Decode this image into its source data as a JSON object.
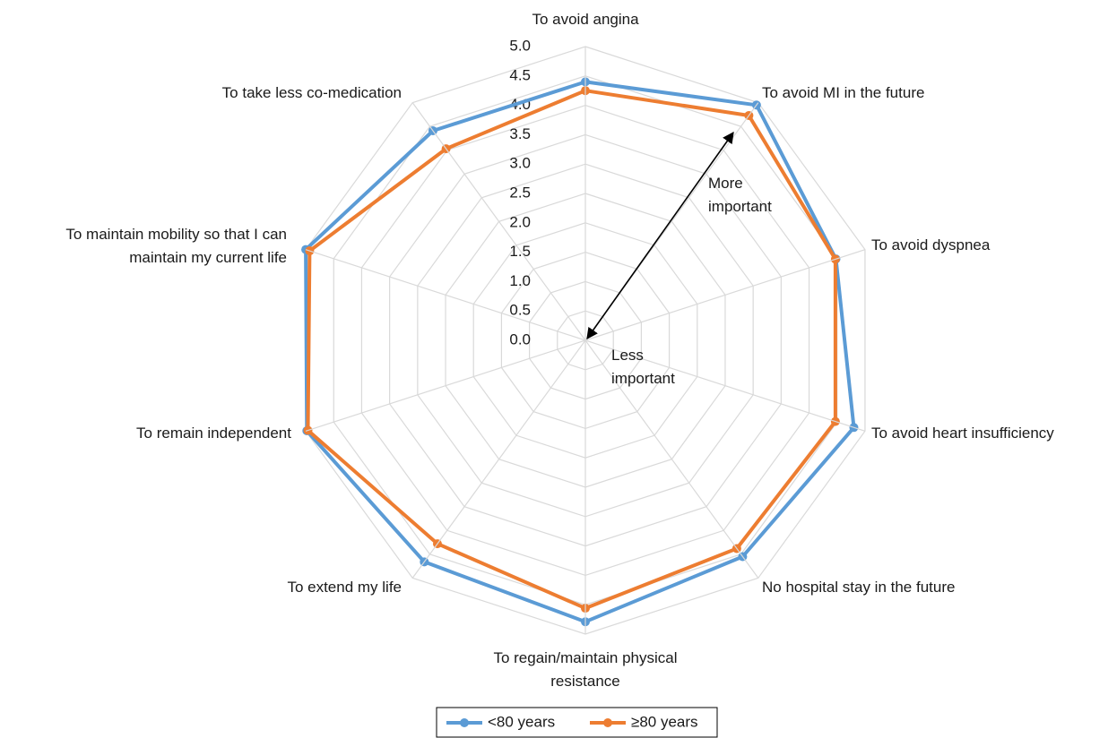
{
  "chart_data": {
    "type": "radar",
    "categories": [
      "To avoid angina",
      "To avoid MI in the future",
      "To avoid dyspnea",
      "To avoid heart insufficiency",
      "No hospital stay in the future",
      "To regain/maintain physical resistance",
      "To extend my life",
      "To remain independent",
      "To maintain mobility so that I can maintain my current life",
      "To take less co-medication"
    ],
    "series": [
      {
        "name": "<80 years",
        "color": "#5b9bd5",
        "values": [
          4.4,
          4.95,
          4.48,
          4.8,
          4.55,
          4.79,
          4.66,
          4.98,
          5.0,
          4.41
        ]
      },
      {
        "name": "≥80 years",
        "color": "#ed7d31",
        "values": [
          4.25,
          4.73,
          4.47,
          4.47,
          4.38,
          4.56,
          4.28,
          4.96,
          4.93,
          4.03
        ]
      }
    ],
    "ylim": [
      0,
      5
    ],
    "yticks": [
      {
        "value": 0,
        "label": "0.0"
      },
      0.5,
      {
        "value": 1,
        "label": "1.0"
      },
      1.5,
      {
        "value": 2,
        "label": "2.0"
      },
      2.5,
      {
        "value": 3,
        "label": "3.0"
      },
      3.5,
      {
        "value": 4,
        "label": "4.0"
      },
      4.5,
      {
        "value": 5,
        "label": "5.0"
      }
    ],
    "grid": true,
    "legend": "bottom",
    "annotations": [
      "More important",
      "Less important"
    ]
  }
}
